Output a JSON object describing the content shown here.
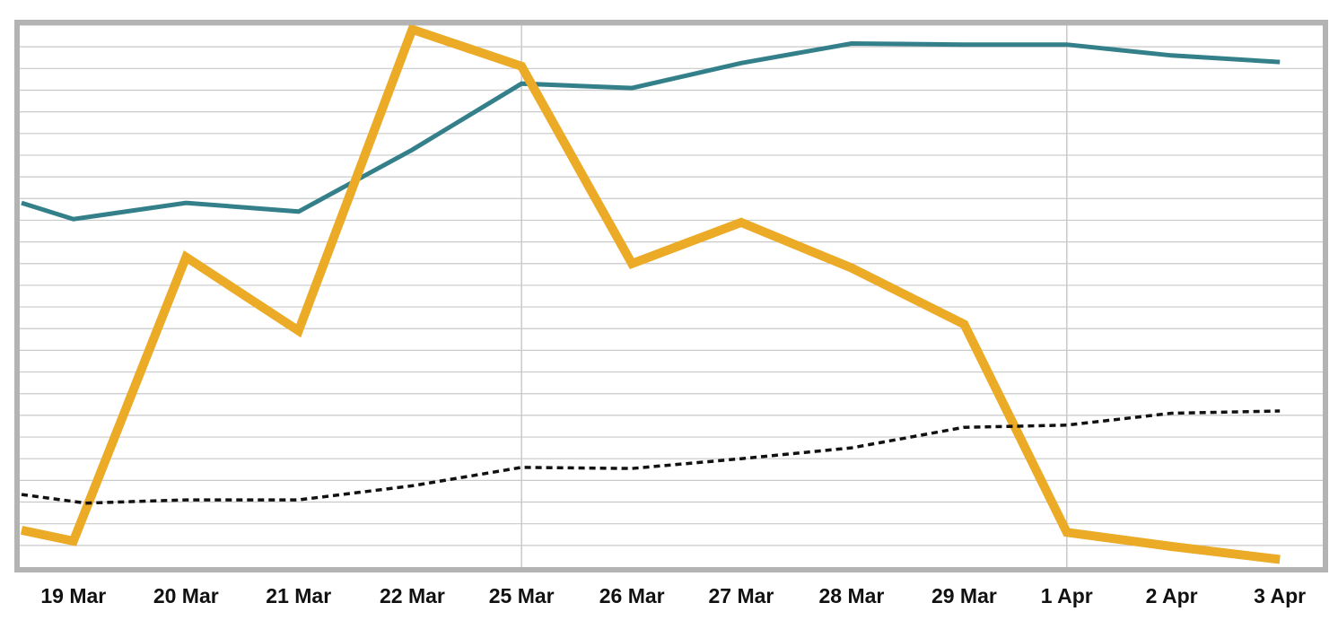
{
  "chart_data": {
    "type": "line",
    "title": "",
    "xlabel": "",
    "ylabel": "",
    "categories": [
      "19 Mar",
      "20 Mar",
      "21 Mar",
      "22 Mar",
      "25 Mar",
      "26 Mar",
      "27 Mar",
      "28 Mar",
      "29 Mar",
      "1 Apr",
      "2 Apr",
      "3 Apr"
    ],
    "x_positions": [
      0.44,
      1.46,
      2.48,
      3.51,
      4.5,
      5.5,
      6.49,
      7.49,
      8.51,
      9.44,
      10.39,
      11.37
    ],
    "x_range": [
      -0.03,
      11.45
    ],
    "y_range": [
      0,
      25
    ],
    "grid": {
      "horizontal": true,
      "vertical_at": [
        "25 Mar",
        "1 Apr"
      ]
    },
    "series": [
      {
        "style": "solid",
        "color": "#34808a",
        "stroke_width": 5,
        "points": [
          [
            -0.03,
            16.8
          ],
          [
            0.44,
            16.05
          ],
          [
            1.46,
            16.8
          ],
          [
            2.48,
            16.4
          ],
          [
            3.51,
            19.25
          ],
          [
            4.5,
            22.3
          ],
          [
            5.5,
            22.1
          ],
          [
            6.49,
            23.25
          ],
          [
            7.49,
            24.15
          ],
          [
            8.51,
            24.1
          ],
          [
            9.44,
            24.1
          ],
          [
            10.39,
            23.6
          ],
          [
            11.37,
            23.3
          ]
        ]
      },
      {
        "style": "solid",
        "color": "#ebab26",
        "stroke_width": 10,
        "points": [
          [
            -0.03,
            1.7
          ],
          [
            0.44,
            1.2
          ],
          [
            1.46,
            14.3
          ],
          [
            2.48,
            10.9
          ],
          [
            3.51,
            24.8
          ],
          [
            4.5,
            23.1
          ],
          [
            5.5,
            14.0
          ],
          [
            6.49,
            15.9
          ],
          [
            7.49,
            13.8
          ],
          [
            8.51,
            11.2
          ],
          [
            9.44,
            1.6
          ],
          [
            10.39,
            0.95
          ],
          [
            11.37,
            0.35
          ]
        ]
      },
      {
        "style": "dotted",
        "color": "#111111",
        "stroke_width": 3.5,
        "points": [
          [
            -0.03,
            3.35
          ],
          [
            0.55,
            2.95
          ],
          [
            1.46,
            3.1
          ],
          [
            2.48,
            3.1
          ],
          [
            3.51,
            3.75
          ],
          [
            4.5,
            4.6
          ],
          [
            5.5,
            4.55
          ],
          [
            6.49,
            5.0
          ],
          [
            7.49,
            5.5
          ],
          [
            8.51,
            6.45
          ],
          [
            9.44,
            6.55
          ],
          [
            10.39,
            7.1
          ],
          [
            11.37,
            7.2
          ]
        ]
      }
    ]
  }
}
